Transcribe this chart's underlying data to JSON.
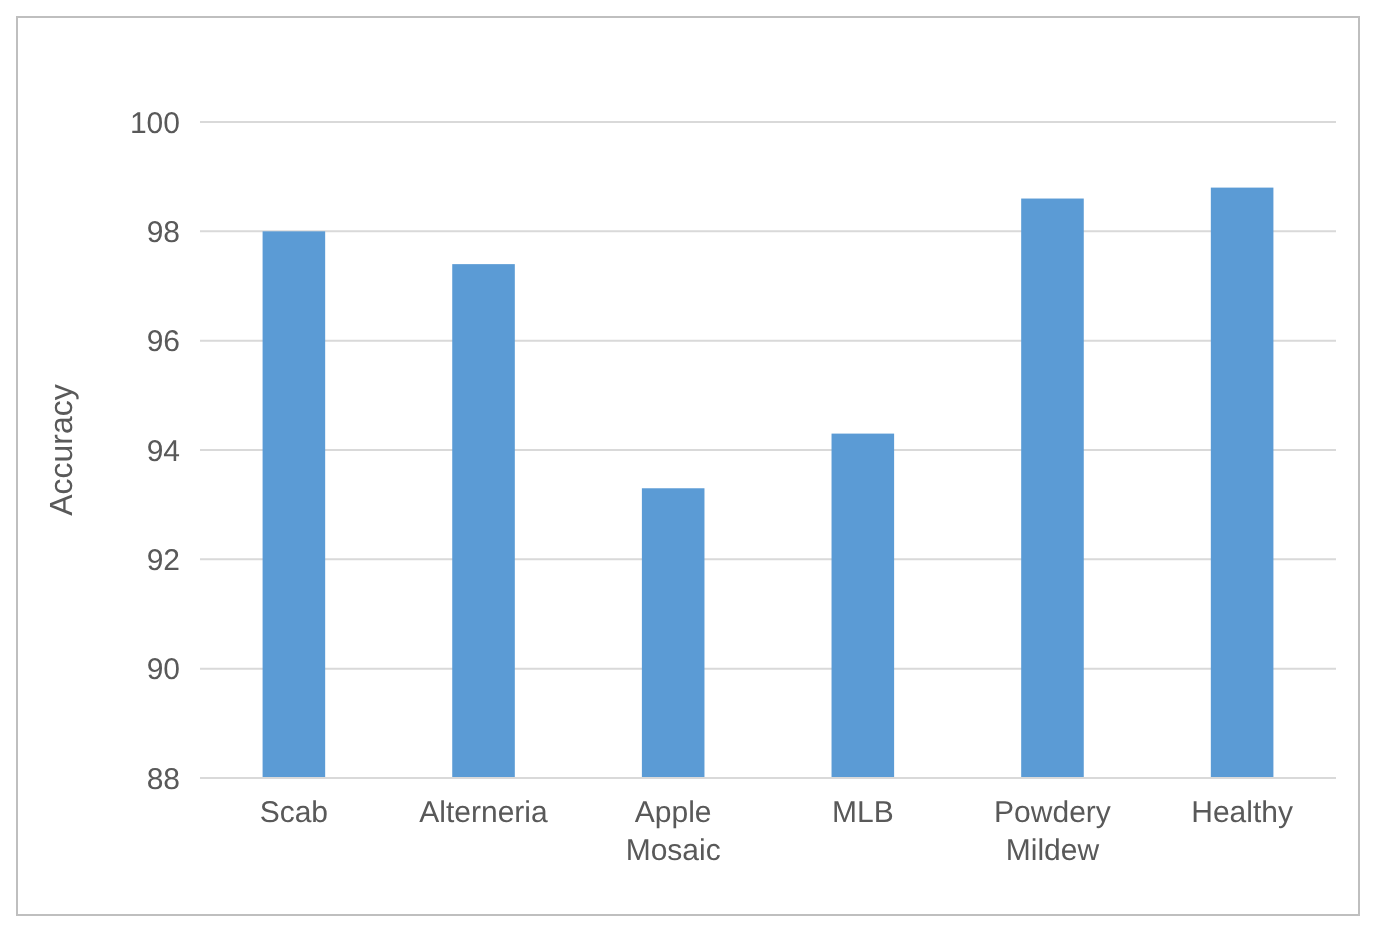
{
  "chart_data": {
    "type": "bar",
    "ylabel": "Accuracy",
    "categories": [
      "Scab",
      "Alterneria",
      "Apple Mosaic",
      "MLB",
      "Powdery Mildew",
      "Healthy"
    ],
    "values": [
      98.0,
      97.4,
      93.3,
      94.3,
      98.6,
      98.8
    ],
    "color": "#5b9bd5",
    "ylim": [
      88,
      100
    ],
    "yticks": [
      88,
      90,
      92,
      94,
      96,
      98,
      100
    ],
    "grid": "y"
  }
}
